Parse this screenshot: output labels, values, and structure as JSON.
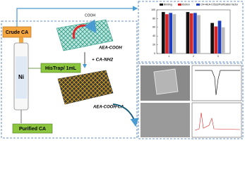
{
  "labels": {
    "crude": "Crude CA",
    "ni": "Ni",
    "histrap": "HisTrap/ 1mL",
    "purified": "Purified CA",
    "aea": "AEA-COOH",
    "cooh": "COOH",
    "ca_nh2": "+ CA-NH2",
    "aea_ca": "AEA-COOH-CA"
  },
  "inset_bar": {
    "type": "bar",
    "categories": [
      "1",
      "2",
      "3"
    ],
    "ylim": [
      0,
      100
    ],
    "yticks": [
      0,
      20,
      40,
      60,
      80,
      100
    ],
    "series": [
      {
        "name": "Binding",
        "color": "#111111",
        "values": [
          95,
          95,
          70
        ]
      },
      {
        "name": "Elution",
        "color": "#d62728",
        "values": [
          90,
          92,
          62
        ]
      },
      {
        "name": "CA+AEA-COOH",
        "color": "#1f3fbf",
        "values": [
          93,
          93,
          75
        ]
      },
      {
        "name": "Purification factor",
        "color": "#bbbbbb",
        "values": [
          90,
          88,
          60
        ]
      }
    ]
  }
}
